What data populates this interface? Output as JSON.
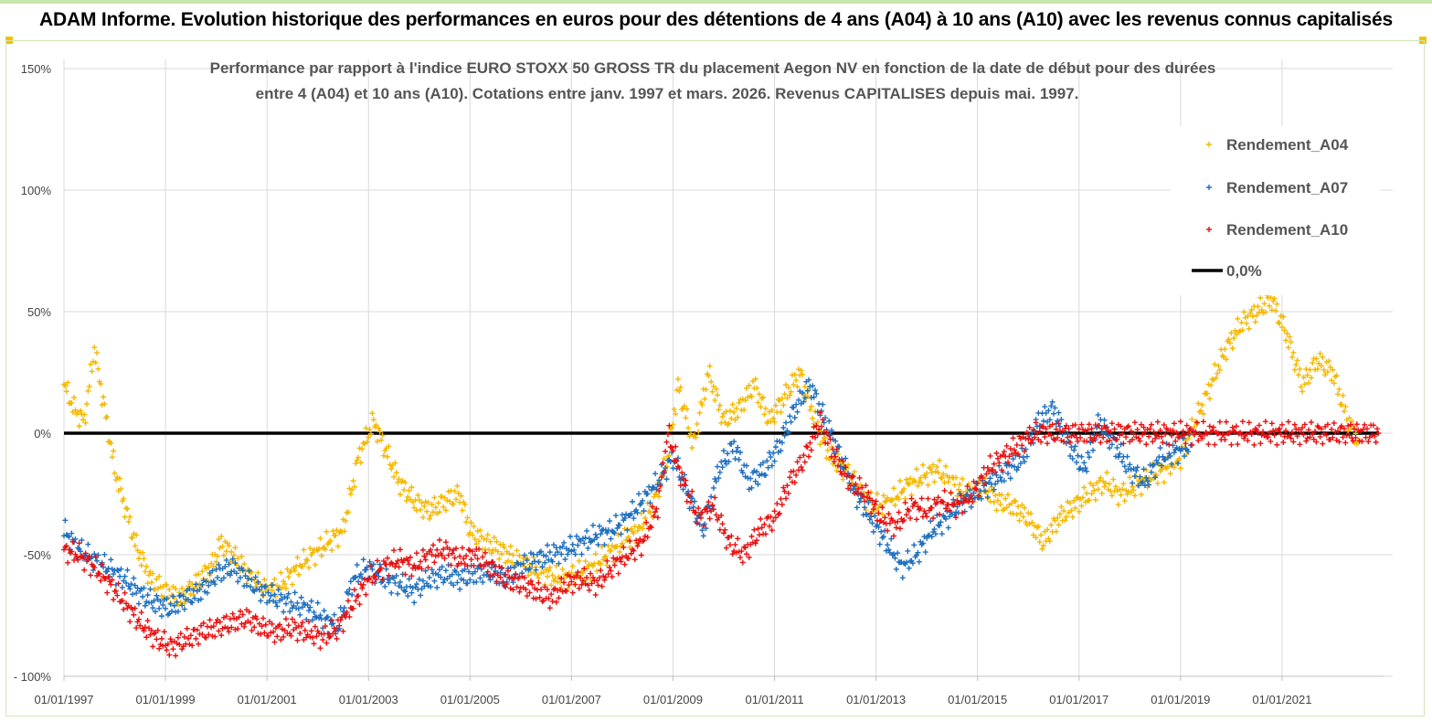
{
  "header": {
    "title": "ADAM Informe. Evolution historique des performances en euros pour des détentions de 4 ans (A04) à 10 ans (A10) avec les revenus connus capitalisés"
  },
  "colors": {
    "a04": "#f5b800",
    "a07": "#1f6fbf",
    "a10": "#e81010",
    "zero": "#000000",
    "grid": "#d9d9d9",
    "text": "#555555"
  },
  "chart_data": {
    "type": "scatter",
    "title_lines": [
      "Performance par rapport à l'indice EURO STOXX 50 GROSS TR  du placement Aegon NV en fonction de la date de début pour des durées",
      "entre 4 (A04) et 10 ans (A10). Cotations entre janv. 1997 et mars. 2026. Revenus CAPITALISES depuis mai. 1997."
    ],
    "ylim": [
      -100,
      150
    ],
    "yticks": [
      -100,
      -50,
      0,
      50,
      100,
      150
    ],
    "ytick_labels": [
      "- 100%",
      "-50%",
      "0%",
      "50%",
      "100%",
      "150%"
    ],
    "xlim": [
      1997.0,
      2023.0
    ],
    "xticks": [
      1997,
      1999,
      2001,
      2003,
      2005,
      2007,
      2009,
      2011,
      2013,
      2015,
      2017,
      2019,
      2021
    ],
    "xtick_labels": [
      "01/01/1997",
      "01/01/1999",
      "01/01/2001",
      "01/01/2003",
      "01/01/2005",
      "01/01/2007",
      "01/01/2009",
      "01/01/2011",
      "01/01/2013",
      "01/01/2015",
      "01/01/2017",
      "01/01/2019",
      "01/01/2021"
    ],
    "legend_position": "top-right",
    "series": [
      {
        "name": "Rendement_A04",
        "color_key": "a04",
        "points": [
          [
            1997.0,
            20
          ],
          [
            1997.2,
            10
          ],
          [
            1997.4,
            5
          ],
          [
            1997.6,
            35
          ],
          [
            1997.8,
            10
          ],
          [
            1998.0,
            -15
          ],
          [
            1998.2,
            -30
          ],
          [
            1998.4,
            -45
          ],
          [
            1998.7,
            -60
          ],
          [
            1999.0,
            -65
          ],
          [
            1999.3,
            -68
          ],
          [
            1999.6,
            -62
          ],
          [
            1999.9,
            -55
          ],
          [
            2000.1,
            -45
          ],
          [
            2000.4,
            -52
          ],
          [
            2000.7,
            -60
          ],
          [
            2001.0,
            -65
          ],
          [
            2001.3,
            -62
          ],
          [
            2001.6,
            -55
          ],
          [
            2001.9,
            -50
          ],
          [
            2002.2,
            -45
          ],
          [
            2002.5,
            -40
          ],
          [
            2002.8,
            -10
          ],
          [
            2003.1,
            5
          ],
          [
            2003.3,
            -5
          ],
          [
            2003.6,
            -20
          ],
          [
            2003.9,
            -28
          ],
          [
            2004.2,
            -32
          ],
          [
            2004.5,
            -28
          ],
          [
            2004.8,
            -25
          ],
          [
            2005.0,
            -40
          ],
          [
            2005.3,
            -45
          ],
          [
            2005.6,
            -48
          ],
          [
            2005.9,
            -52
          ],
          [
            2006.2,
            -55
          ],
          [
            2006.5,
            -58
          ],
          [
            2006.8,
            -60
          ],
          [
            2007.1,
            -58
          ],
          [
            2007.4,
            -55
          ],
          [
            2007.7,
            -50
          ],
          [
            2008.0,
            -45
          ],
          [
            2008.3,
            -40
          ],
          [
            2008.6,
            -30
          ],
          [
            2008.9,
            -10
          ],
          [
            2009.1,
            20
          ],
          [
            2009.4,
            -5
          ],
          [
            2009.7,
            25
          ],
          [
            2010.0,
            5
          ],
          [
            2010.3,
            10
          ],
          [
            2010.6,
            20
          ],
          [
            2010.9,
            5
          ],
          [
            2011.2,
            15
          ],
          [
            2011.5,
            25
          ],
          [
            2011.8,
            5
          ],
          [
            2012.1,
            -10
          ],
          [
            2012.4,
            -15
          ],
          [
            2012.7,
            -25
          ],
          [
            2013.0,
            -30
          ],
          [
            2013.3,
            -28
          ],
          [
            2013.6,
            -22
          ],
          [
            2013.9,
            -18
          ],
          [
            2014.2,
            -15
          ],
          [
            2014.5,
            -20
          ],
          [
            2014.8,
            -25
          ],
          [
            2015.1,
            -22
          ],
          [
            2015.4,
            -28
          ],
          [
            2015.7,
            -30
          ],
          [
            2016.0,
            -35
          ],
          [
            2016.3,
            -45
          ],
          [
            2016.6,
            -35
          ],
          [
            2016.9,
            -30
          ],
          [
            2017.2,
            -25
          ],
          [
            2017.5,
            -20
          ],
          [
            2017.8,
            -25
          ],
          [
            2018.1,
            -22
          ],
          [
            2018.4,
            -18
          ],
          [
            2018.7,
            -15
          ],
          [
            2019.0,
            -10
          ],
          [
            2019.3,
            5
          ],
          [
            2019.6,
            20
          ],
          [
            2019.9,
            35
          ],
          [
            2020.2,
            45
          ],
          [
            2020.5,
            50
          ],
          [
            2020.8,
            55
          ],
          [
            2021.1,
            40
          ],
          [
            2021.4,
            20
          ],
          [
            2021.7,
            30
          ],
          [
            2022.0,
            25
          ],
          [
            2022.3,
            5
          ],
          [
            2022.5,
            -3
          ]
        ]
      },
      {
        "name": "Rendement_A07",
        "color_key": "a07",
        "points": [
          [
            1997.0,
            -40
          ],
          [
            1997.3,
            -48
          ],
          [
            1997.6,
            -52
          ],
          [
            1997.9,
            -56
          ],
          [
            1998.2,
            -60
          ],
          [
            1998.5,
            -66
          ],
          [
            1998.8,
            -70
          ],
          [
            1999.1,
            -72
          ],
          [
            1999.4,
            -68
          ],
          [
            1999.7,
            -65
          ],
          [
            2000.0,
            -58
          ],
          [
            2000.3,
            -55
          ],
          [
            2000.6,
            -60
          ],
          [
            2000.9,
            -65
          ],
          [
            2001.2,
            -68
          ],
          [
            2001.5,
            -70
          ],
          [
            2001.8,
            -72
          ],
          [
            2002.1,
            -76
          ],
          [
            2002.4,
            -80
          ],
          [
            2002.7,
            -60
          ],
          [
            2003.0,
            -55
          ],
          [
            2003.3,
            -60
          ],
          [
            2003.6,
            -62
          ],
          [
            2003.9,
            -65
          ],
          [
            2004.2,
            -60
          ],
          [
            2004.5,
            -58
          ],
          [
            2004.8,
            -60
          ],
          [
            2005.1,
            -58
          ],
          [
            2005.4,
            -57
          ],
          [
            2005.7,
            -60
          ],
          [
            2006.0,
            -55
          ],
          [
            2006.3,
            -52
          ],
          [
            2006.6,
            -50
          ],
          [
            2006.9,
            -48
          ],
          [
            2007.2,
            -45
          ],
          [
            2007.5,
            -42
          ],
          [
            2007.8,
            -40
          ],
          [
            2008.1,
            -35
          ],
          [
            2008.4,
            -28
          ],
          [
            2008.7,
            -20
          ],
          [
            2009.0,
            -10
          ],
          [
            2009.3,
            -25
          ],
          [
            2009.6,
            -40
          ],
          [
            2009.9,
            -15
          ],
          [
            2010.2,
            -5
          ],
          [
            2010.5,
            -20
          ],
          [
            2010.8,
            -15
          ],
          [
            2011.1,
            -5
          ],
          [
            2011.4,
            10
          ],
          [
            2011.7,
            20
          ],
          [
            2012.0,
            5
          ],
          [
            2012.3,
            -10
          ],
          [
            2012.6,
            -25
          ],
          [
            2012.9,
            -35
          ],
          [
            2013.2,
            -45
          ],
          [
            2013.5,
            -55
          ],
          [
            2013.8,
            -50
          ],
          [
            2014.1,
            -40
          ],
          [
            2014.4,
            -35
          ],
          [
            2014.7,
            -28
          ],
          [
            2015.0,
            -25
          ],
          [
            2015.3,
            -20
          ],
          [
            2015.6,
            -15
          ],
          [
            2015.9,
            -10
          ],
          [
            2016.2,
            5
          ],
          [
            2016.5,
            10
          ],
          [
            2016.8,
            -5
          ],
          [
            2017.1,
            -15
          ],
          [
            2017.4,
            5
          ],
          [
            2017.7,
            -5
          ],
          [
            2018.0,
            -15
          ],
          [
            2018.3,
            -20
          ],
          [
            2018.6,
            -10
          ],
          [
            2018.9,
            -8
          ],
          [
            2019.2,
            -5
          ]
        ]
      },
      {
        "name": "Rendement_A10",
        "color_key": "a10",
        "points": [
          [
            1997.0,
            -48
          ],
          [
            1997.3,
            -50
          ],
          [
            1997.6,
            -55
          ],
          [
            1997.9,
            -62
          ],
          [
            1998.2,
            -70
          ],
          [
            1998.5,
            -78
          ],
          [
            1998.8,
            -84
          ],
          [
            1999.1,
            -88
          ],
          [
            1999.4,
            -85
          ],
          [
            1999.7,
            -82
          ],
          [
            2000.0,
            -80
          ],
          [
            2000.3,
            -78
          ],
          [
            2000.6,
            -76
          ],
          [
            2000.9,
            -80
          ],
          [
            2001.2,
            -82
          ],
          [
            2001.5,
            -80
          ],
          [
            2001.8,
            -82
          ],
          [
            2002.1,
            -84
          ],
          [
            2002.4,
            -80
          ],
          [
            2002.7,
            -70
          ],
          [
            2003.0,
            -60
          ],
          [
            2003.3,
            -55
          ],
          [
            2003.6,
            -52
          ],
          [
            2003.9,
            -55
          ],
          [
            2004.2,
            -50
          ],
          [
            2004.5,
            -48
          ],
          [
            2004.8,
            -52
          ],
          [
            2005.1,
            -50
          ],
          [
            2005.4,
            -55
          ],
          [
            2005.7,
            -60
          ],
          [
            2006.0,
            -62
          ],
          [
            2006.3,
            -65
          ],
          [
            2006.6,
            -68
          ],
          [
            2006.9,
            -62
          ],
          [
            2007.2,
            -60
          ],
          [
            2007.5,
            -62
          ],
          [
            2007.8,
            -55
          ],
          [
            2008.1,
            -50
          ],
          [
            2008.4,
            -45
          ],
          [
            2008.7,
            -30
          ],
          [
            2008.9,
            0
          ],
          [
            2009.2,
            -20
          ],
          [
            2009.5,
            -35
          ],
          [
            2009.8,
            -30
          ],
          [
            2010.1,
            -45
          ],
          [
            2010.4,
            -50
          ],
          [
            2010.7,
            -40
          ],
          [
            2011.0,
            -35
          ],
          [
            2011.3,
            -20
          ],
          [
            2011.6,
            -10
          ],
          [
            2011.9,
            5
          ],
          [
            2012.2,
            -10
          ],
          [
            2012.5,
            -20
          ],
          [
            2012.8,
            -25
          ],
          [
            2013.1,
            -35
          ],
          [
            2013.4,
            -38
          ],
          [
            2013.7,
            -30
          ],
          [
            2014.0,
            -32
          ],
          [
            2014.3,
            -28
          ],
          [
            2014.6,
            -30
          ],
          [
            2014.9,
            -25
          ],
          [
            2015.2,
            -15
          ],
          [
            2015.5,
            -10
          ],
          [
            2015.8,
            -5
          ],
          [
            2016.1,
            0
          ],
          [
            2016.5,
            0
          ],
          [
            2017.0,
            0
          ],
          [
            2017.5,
            0
          ],
          [
            2018.0,
            0
          ],
          [
            2018.5,
            0
          ],
          [
            2019.0,
            0
          ],
          [
            2019.5,
            0
          ],
          [
            2020.0,
            0
          ],
          [
            2020.5,
            0
          ],
          [
            2021.0,
            0
          ],
          [
            2021.5,
            0
          ],
          [
            2022.0,
            0
          ],
          [
            2022.5,
            0
          ],
          [
            2022.9,
            0
          ]
        ]
      },
      {
        "name": "0,0%",
        "color_key": "zero",
        "style": "line",
        "x": [
          1997.0,
          2022.9
        ],
        "y": [
          0,
          0
        ]
      }
    ]
  }
}
